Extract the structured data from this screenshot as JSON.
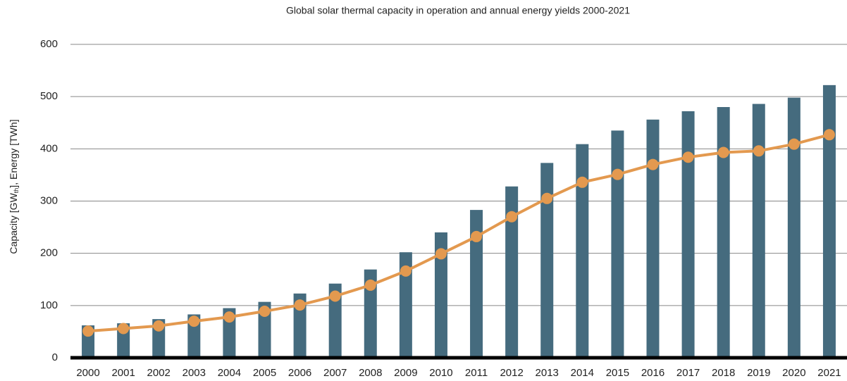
{
  "chart_data": {
    "type": "bar_line",
    "title": "Global solar thermal capacity in operation and annual energy yields 2000-2021",
    "y_label": [
      "Capacity [GW",
      "th",
      "], Energy [TWh]"
    ],
    "categories": [
      "2000",
      "2001",
      "2002",
      "2003",
      "2004",
      "2005",
      "2006",
      "2007",
      "2008",
      "2009",
      "2010",
      "2011",
      "2012",
      "2013",
      "2014",
      "2015",
      "2016",
      "2017",
      "2018",
      "2019",
      "2020",
      "2021"
    ],
    "series": [
      {
        "type": "bar",
        "color": "#456b7e",
        "values": [
          62,
          66,
          74,
          83,
          95,
          107,
          123,
          142,
          169,
          202,
          240,
          283,
          328,
          373,
          409,
          435,
          456,
          472,
          480,
          486,
          498,
          522
        ]
      },
      {
        "type": "line",
        "color": "#e3994f",
        "values": [
          51,
          56,
          61,
          70,
          78,
          89,
          101,
          118,
          139,
          166,
          199,
          232,
          270,
          305,
          336,
          351,
          370,
          384,
          393,
          396,
          409,
          427
        ]
      }
    ],
    "ylim": [
      0,
      600
    ],
    "yticks": [
      0,
      100,
      200,
      300,
      400,
      500,
      600
    ],
    "grid": true
  }
}
